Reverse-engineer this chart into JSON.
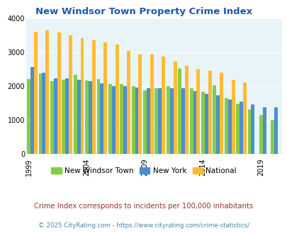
{
  "title": "New Windsor Town Property Crime Index",
  "title_color": "#2255aa",
  "years": [
    1999,
    2000,
    2001,
    2002,
    2003,
    2004,
    2005,
    2006,
    2007,
    2008,
    2009,
    2010,
    2011,
    2012,
    2013,
    2014,
    2015,
    2016,
    2017,
    2018,
    2019,
    2020
  ],
  "new_windsor": [
    2220,
    2380,
    2150,
    2200,
    2330,
    2160,
    2210,
    2070,
    2060,
    2010,
    1880,
    1940,
    2000,
    2520,
    1940,
    1840,
    2020,
    1650,
    1490,
    1310,
    1150,
    1000
  ],
  "new_york": [
    2560,
    2400,
    2230,
    2230,
    2200,
    2140,
    2080,
    2010,
    2000,
    1960,
    1940,
    1940,
    1930,
    1930,
    1850,
    1780,
    1720,
    1600,
    1550,
    1460,
    1380,
    1370
  ],
  "national": [
    3610,
    3660,
    3600,
    3500,
    3430,
    3360,
    3290,
    3230,
    3050,
    2950,
    2940,
    2880,
    2740,
    2610,
    2500,
    2470,
    2390,
    2180,
    2110,
    0,
    0,
    0
  ],
  "color_windsor": "#88cc44",
  "color_newyork": "#4d8fcc",
  "color_national": "#ffbb33",
  "bg_color": "#e8f4f8",
  "ylim": [
    0,
    4000
  ],
  "yticks": [
    0,
    1000,
    2000,
    3000,
    4000
  ],
  "xtick_years": [
    1999,
    2004,
    2009,
    2014,
    2019
  ],
  "legend_labels": [
    "New Windsor Town",
    "New York",
    "National"
  ],
  "subtitle": "Crime Index corresponds to incidents per 100,000 inhabitants",
  "subtitle_color": "#993333",
  "footer": "© 2025 CityRating.com - https://www.cityrating.com/crime-statistics/",
  "footer_color": "#4488aa"
}
